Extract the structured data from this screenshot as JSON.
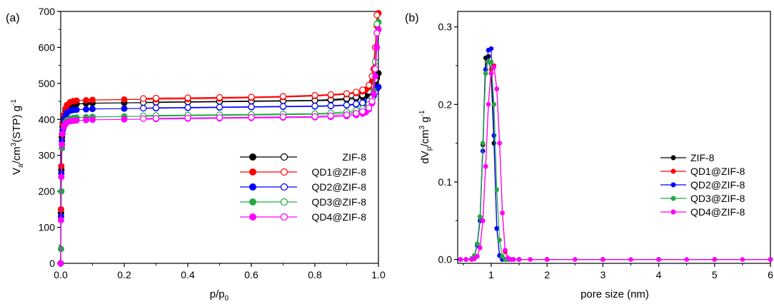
{
  "chart_data": [
    {
      "type": "line",
      "panel_label": "(a)",
      "xlabel_main": "p/p",
      "xlabel_sub": "0",
      "ylabel_parts": {
        "v": "V",
        "a": "a",
        "mid": "/cm",
        "exp3": "3",
        "stp": "(STP) g",
        "expm1": "-1"
      },
      "xlim": [
        0,
        1.0
      ],
      "ylim": [
        0,
        700
      ],
      "xticks": [
        "0.0",
        "0.2",
        "0.4",
        "0.6",
        "0.8",
        "1.0"
      ],
      "yticks": [
        "0",
        "100",
        "200",
        "300",
        "400",
        "500",
        "600",
        "700"
      ],
      "grid": false,
      "legend_position": "right-center",
      "series": [
        {
          "name": "ZIF-8",
          "color": "#000000",
          "adsorption": {
            "x": [
              0.0,
              0.001,
              0.002,
              0.004,
              0.006,
              0.01,
              0.015,
              0.02,
              0.03,
              0.04,
              0.05,
              0.08,
              0.1,
              0.2,
              0.3,
              0.4,
              0.5,
              0.6,
              0.7,
              0.8,
              0.85,
              0.9,
              0.93,
              0.95,
              0.96,
              0.97,
              0.98,
              0.985,
              0.99,
              0.995,
              1.0
            ],
            "y": [
              0,
              140,
              260,
              350,
              380,
              405,
              425,
              435,
              440,
              442,
              443,
              444,
              445,
              446,
              447,
              448,
              449,
              450,
              451,
              452,
              453,
              455,
              458,
              462,
              466,
              472,
              480,
              490,
              500,
              515,
              528
            ]
          },
          "desorption": {
            "x": [
              0.26,
              0.3,
              0.4,
              0.5,
              0.6,
              0.7,
              0.8,
              0.85,
              0.9,
              0.93,
              0.95,
              0.97,
              0.98,
              0.99
            ],
            "y": [
              447,
              448,
              449,
              450,
              451,
              452,
              453,
              455,
              458,
              462,
              468,
              478,
              490,
              510
            ]
          }
        },
        {
          "name": "QD1@ZIF-8",
          "color": "#ff0000",
          "adsorption": {
            "x": [
              0.0,
              0.001,
              0.002,
              0.004,
              0.006,
              0.01,
              0.015,
              0.02,
              0.03,
              0.04,
              0.05,
              0.08,
              0.1,
              0.2,
              0.3,
              0.4,
              0.5,
              0.6,
              0.7,
              0.8,
              0.85,
              0.9,
              0.93,
              0.95,
              0.96,
              0.97,
              0.98,
              0.985,
              0.99,
              0.995,
              1.0
            ],
            "y": [
              0,
              150,
              270,
              360,
              390,
              412,
              430,
              440,
              448,
              451,
              452,
              453,
              454,
              455,
              456,
              457,
              458,
              460,
              462,
              465,
              467,
              470,
              473,
              478,
              482,
              490,
              505,
              540,
              600,
              660,
              695
            ]
          },
          "desorption": {
            "x": [
              0.26,
              0.3,
              0.4,
              0.5,
              0.6,
              0.7,
              0.8,
              0.85,
              0.9,
              0.93,
              0.95,
              0.97,
              0.98,
              0.99,
              0.995
            ],
            "y": [
              458,
              459,
              460,
              461,
              462,
              464,
              467,
              469,
              472,
              476,
              482,
              495,
              520,
              600,
              690
            ]
          }
        },
        {
          "name": "QD2@ZIF-8",
          "color": "#0000ff",
          "adsorption": {
            "x": [
              0.0,
              0.001,
              0.002,
              0.004,
              0.006,
              0.01,
              0.015,
              0.02,
              0.03,
              0.04,
              0.05,
              0.08,
              0.1,
              0.2,
              0.3,
              0.4,
              0.5,
              0.6,
              0.7,
              0.8,
              0.85,
              0.9,
              0.93,
              0.95,
              0.96,
              0.97,
              0.98,
              0.985,
              0.99,
              0.995,
              1.0
            ],
            "y": [
              0,
              130,
              250,
              340,
              370,
              395,
              410,
              418,
              424,
              426,
              427,
              428,
              429,
              430,
              431,
              432,
              433,
              434,
              435,
              436,
              437,
              439,
              441,
              444,
              447,
              451,
              458,
              465,
              475,
              485,
              490
            ]
          },
          "desorption": {
            "x": [
              0.26,
              0.3,
              0.4,
              0.5,
              0.6,
              0.7,
              0.8,
              0.85,
              0.9,
              0.93,
              0.95,
              0.97,
              0.98,
              0.99
            ],
            "y": [
              431,
              432,
              433,
              434,
              435,
              436,
              437,
              438,
              440,
              443,
              446,
              452,
              460,
              475
            ]
          }
        },
        {
          "name": "QD3@ZIF-8",
          "color": "#22aa44",
          "adsorption": {
            "x": [
              0.0,
              0.001,
              0.002,
              0.004,
              0.006,
              0.01,
              0.015,
              0.02,
              0.03,
              0.04,
              0.05,
              0.08,
              0.1,
              0.2,
              0.3,
              0.4,
              0.5,
              0.6,
              0.7,
              0.8,
              0.85,
              0.9,
              0.93,
              0.95,
              0.96,
              0.97,
              0.98,
              0.985,
              0.99,
              0.995,
              1.0
            ],
            "y": [
              0,
              40,
              200,
              320,
              360,
              380,
              392,
              398,
              402,
              404,
              405,
              406,
              407,
              408,
              409,
              410,
              411,
              412,
              413,
              414,
              415,
              417,
              420,
              424,
              428,
              436,
              450,
              480,
              560,
              640,
              670
            ]
          },
          "desorption": {
            "x": [
              0.26,
              0.3,
              0.4,
              0.5,
              0.6,
              0.7,
              0.8,
              0.85,
              0.9,
              0.93,
              0.95,
              0.97,
              0.98,
              0.99,
              0.995
            ],
            "y": [
              410,
              411,
              412,
              413,
              414,
              415,
              416,
              418,
              421,
              425,
              430,
              442,
              460,
              560,
              665
            ]
          }
        },
        {
          "name": "QD4@ZIF-8",
          "color": "#ff00ff",
          "adsorption": {
            "x": [
              0.0,
              0.001,
              0.002,
              0.004,
              0.006,
              0.01,
              0.015,
              0.02,
              0.03,
              0.04,
              0.05,
              0.08,
              0.1,
              0.2,
              0.3,
              0.4,
              0.5,
              0.6,
              0.7,
              0.8,
              0.85,
              0.9,
              0.93,
              0.95,
              0.96,
              0.97,
              0.98,
              0.985,
              0.99,
              0.995,
              1.0
            ],
            "y": [
              0,
              120,
              240,
              330,
              360,
              378,
              387,
              392,
              395,
              396,
              397,
              398,
              399,
              400,
              401,
              402,
              403,
              404,
              405,
              406,
              407,
              409,
              412,
              416,
              420,
              428,
              445,
              470,
              520,
              600,
              650
            ]
          },
          "desorption": {
            "x": [
              0.26,
              0.3,
              0.4,
              0.5,
              0.6,
              0.7,
              0.8,
              0.85,
              0.9,
              0.93,
              0.95,
              0.97,
              0.98,
              0.99,
              0.995
            ],
            "y": [
              402,
              403,
              404,
              405,
              406,
              407,
              408,
              410,
              413,
              417,
              422,
              432,
              450,
              540,
              640
            ]
          }
        }
      ]
    },
    {
      "type": "line",
      "panel_label": "(b)",
      "xlabel": "pore size (nm)",
      "ylabel_parts": {
        "d": "dV",
        "p": "p",
        "mid": "/cm",
        "exp3": "3",
        "g": " g",
        "expm1": "-1"
      },
      "xlim": [
        0.4,
        6
      ],
      "ylim": [
        -0.005,
        0.32
      ],
      "xticks": [
        "1",
        "2",
        "3",
        "4",
        "5",
        "6"
      ],
      "yticks": [
        "0.0",
        "0.1",
        "0.2",
        "0.3"
      ],
      "grid": false,
      "legend_position": "right-center",
      "series": [
        {
          "name": "ZIF-8",
          "color": "#000000",
          "x": [
            0.45,
            0.55,
            0.65,
            0.7,
            0.75,
            0.8,
            0.85,
            0.9,
            0.95,
            1.0,
            1.05,
            1.1,
            1.15,
            1.2,
            1.25,
            1.3,
            1.35,
            1.4,
            1.5,
            2.0,
            3.0,
            4.0,
            5.0,
            6.0
          ],
          "y": [
            0,
            0,
            0.001,
            0.005,
            0.02,
            0.055,
            0.148,
            0.26,
            0.262,
            0.24,
            0.15,
            0.04,
            0.005,
            0,
            0,
            0,
            0,
            0,
            0,
            0,
            0,
            0,
            0,
            0
          ]
        },
        {
          "name": "QD1@ZIF-8",
          "color": "#ff0000",
          "x": [
            0.45,
            0.55,
            0.65,
            0.7,
            0.75,
            0.8,
            0.85,
            0.9,
            0.95,
            1.0,
            1.05,
            1.1,
            1.15,
            1.2,
            1.25,
            1.3,
            1.35,
            1.4,
            1.5,
            2.0,
            3.0,
            4.0,
            5.0,
            6.0
          ],
          "y": [
            0,
            0,
            0,
            0.001,
            0.004,
            0.015,
            0.05,
            0.12,
            0.2,
            0.245,
            0.25,
            0.22,
            0.15,
            0.06,
            0.01,
            0.001,
            0,
            0,
            0,
            0,
            0,
            0,
            0,
            0
          ]
        },
        {
          "name": "QD2@ZIF-8",
          "color": "#0000ff",
          "x": [
            0.45,
            0.55,
            0.65,
            0.7,
            0.75,
            0.8,
            0.85,
            0.9,
            0.95,
            1.0,
            1.05,
            1.1,
            1.15,
            1.2,
            1.25,
            1.3,
            1.35,
            1.4,
            1.5,
            2.0,
            3.0,
            4.0,
            5.0,
            6.0
          ],
          "y": [
            0,
            0,
            0.001,
            0.004,
            0.018,
            0.05,
            0.14,
            0.245,
            0.27,
            0.272,
            0.16,
            0.04,
            0.005,
            0,
            0,
            0,
            0,
            0,
            0,
            0,
            0,
            0,
            0,
            0
          ]
        },
        {
          "name": "QD3@ZIF-8",
          "color": "#22aa44",
          "x": [
            0.45,
            0.55,
            0.65,
            0.7,
            0.75,
            0.8,
            0.85,
            0.9,
            0.95,
            1.0,
            1.05,
            1.1,
            1.15,
            1.2,
            1.25,
            1.3,
            1.35,
            1.4,
            1.5,
            2.0,
            3.0,
            4.0,
            5.0,
            6.0
          ],
          "y": [
            0,
            0,
            0.001,
            0.005,
            0.02,
            0.055,
            0.15,
            0.24,
            0.255,
            0.255,
            0.2,
            0.09,
            0.025,
            0.004,
            0,
            0,
            0,
            0,
            0,
            0,
            0,
            0,
            0,
            0
          ]
        },
        {
          "name": "QD4@ZIF-8",
          "color": "#ff00ff",
          "x": [
            0.45,
            0.55,
            0.65,
            0.7,
            0.75,
            0.8,
            0.85,
            0.9,
            0.95,
            1.0,
            1.05,
            1.1,
            1.15,
            1.2,
            1.25,
            1.3,
            1.35,
            1.4,
            1.5,
            1.7,
            2.0,
            2.5,
            3.0,
            3.5,
            4.0,
            4.5,
            5.0,
            5.5,
            6.0
          ],
          "y": [
            0,
            0,
            0,
            0.001,
            0.004,
            0.015,
            0.05,
            0.12,
            0.2,
            0.24,
            0.248,
            0.22,
            0.15,
            0.06,
            0.012,
            0.002,
            0,
            0,
            0,
            0,
            0,
            0,
            0,
            0,
            0,
            0,
            0,
            0,
            0
          ]
        }
      ]
    }
  ]
}
